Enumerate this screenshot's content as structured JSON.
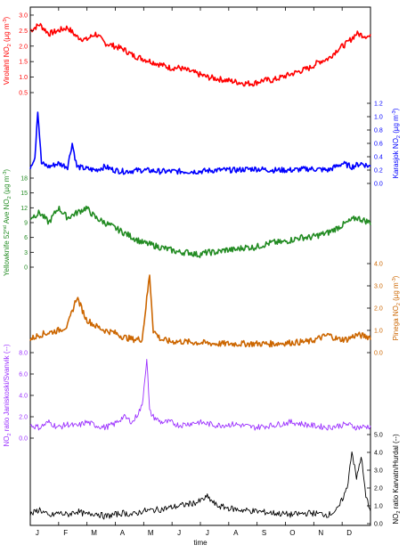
{
  "chart_data": {
    "type": "line",
    "xlabel": "time",
    "month_ticks": [
      "J",
      "F",
      "M",
      "A",
      "M",
      "J",
      "J",
      "A",
      "S",
      "O",
      "N",
      "D"
    ],
    "x_range": [
      0,
      365
    ],
    "panels": [
      {
        "id": "virolahti",
        "side": "left",
        "ylabel_main": "Virolahti NO",
        "ylabel_sub": "2",
        "ylabel_unit": " (µg m",
        "ylabel_sup": "-3",
        "ylabel_end": ")",
        "color": "#ff0000",
        "ylim": [
          0.5,
          3.2
        ],
        "ticks": [
          "0.5",
          "1.0",
          "1.5",
          "2.0",
          "2.5",
          "3.0"
        ],
        "tick_values": [
          0.5,
          1.0,
          1.5,
          2.0,
          2.5,
          3.0
        ],
        "series": {
          "name": "Virolahti",
          "x": [
            0,
            10,
            20,
            30,
            40,
            50,
            60,
            70,
            80,
            90,
            100,
            110,
            120,
            130,
            140,
            150,
            160,
            170,
            180,
            190,
            200,
            210,
            220,
            230,
            240,
            250,
            260,
            270,
            280,
            290,
            300,
            310,
            320,
            330,
            340,
            350,
            365
          ],
          "values": [
            2.5,
            2.7,
            2.4,
            2.5,
            2.6,
            2.3,
            2.2,
            2.4,
            2.1,
            2.0,
            1.9,
            1.7,
            1.6,
            1.5,
            1.4,
            1.3,
            1.3,
            1.2,
            1.1,
            1.0,
            0.95,
            0.9,
            0.85,
            0.8,
            0.8,
            0.9,
            0.9,
            1.0,
            1.1,
            1.2,
            1.3,
            1.5,
            1.6,
            1.9,
            2.1,
            2.4,
            2.3
          ]
        }
      },
      {
        "id": "karasjok",
        "side": "right",
        "ylabel_main": "Karasjok NO",
        "ylabel_sub": "2",
        "ylabel_unit": " (µg m",
        "ylabel_sup": "-3",
        "ylabel_end": ")",
        "color": "#0000ff",
        "ylim": [
          0.0,
          1.2
        ],
        "ticks": [
          "0.0",
          "0.2",
          "0.4",
          "0.6",
          "0.8",
          "1.0",
          "1.2"
        ],
        "tick_values": [
          0.0,
          0.2,
          0.4,
          0.6,
          0.8,
          1.0,
          1.2
        ],
        "series": {
          "name": "Karasjok",
          "x": [
            0,
            5,
            8,
            12,
            20,
            30,
            40,
            45,
            50,
            60,
            70,
            80,
            90,
            100,
            120,
            140,
            160,
            180,
            200,
            220,
            240,
            260,
            280,
            300,
            320,
            335,
            345,
            355,
            365
          ],
          "values": [
            0.25,
            0.4,
            1.1,
            0.3,
            0.25,
            0.3,
            0.25,
            0.6,
            0.25,
            0.22,
            0.2,
            0.25,
            0.2,
            0.18,
            0.2,
            0.18,
            0.18,
            0.18,
            0.2,
            0.2,
            0.22,
            0.2,
            0.2,
            0.22,
            0.2,
            0.3,
            0.25,
            0.3,
            0.25
          ]
        }
      },
      {
        "id": "yellowknife",
        "side": "left",
        "ylabel_main": "Yellowknife 52",
        "ylabel_sub": "",
        "ylabel_sup_nd": "nd",
        "ylabel_unit": " Ave NO",
        "ylabel_sub2": "2",
        "ylabel_unit2": " (µg m",
        "ylabel_sup": "-3",
        "ylabel_end": ")",
        "color": "#228b22",
        "ylim": [
          0,
          18
        ],
        "ticks": [
          "0",
          "3",
          "6",
          "9",
          "12",
          "15",
          "18"
        ],
        "tick_values": [
          0,
          3,
          6,
          9,
          12,
          15,
          18
        ],
        "series": {
          "name": "Yellowknife",
          "x": [
            0,
            10,
            20,
            30,
            40,
            50,
            60,
            70,
            80,
            90,
            100,
            110,
            120,
            130,
            140,
            150,
            160,
            170,
            180,
            190,
            200,
            210,
            220,
            230,
            240,
            250,
            260,
            270,
            280,
            290,
            300,
            310,
            320,
            330,
            340,
            350,
            365
          ],
          "values": [
            10,
            11,
            9,
            12,
            10,
            11,
            12,
            10,
            9,
            8,
            7,
            6,
            5,
            4.5,
            4,
            3.5,
            3,
            3,
            2.5,
            3,
            3,
            3.5,
            3.5,
            4,
            4,
            4.5,
            5,
            5,
            5.5,
            6,
            6,
            6.5,
            7,
            8,
            9,
            10,
            9
          ]
        }
      },
      {
        "id": "pinega",
        "side": "right",
        "ylabel_main": "Pinega NO",
        "ylabel_sub": "2",
        "ylabel_unit": " (µg m",
        "ylabel_sup": "-3",
        "ylabel_end": ")",
        "color": "#cc6600",
        "ylim": [
          0.0,
          4.0
        ],
        "ticks": [
          "0.0",
          "1.0",
          "2.0",
          "3.0",
          "4.0"
        ],
        "tick_values": [
          0.0,
          1.0,
          2.0,
          3.0,
          4.0
        ],
        "series": {
          "name": "Pinega",
          "x": [
            0,
            10,
            20,
            30,
            40,
            50,
            60,
            70,
            80,
            90,
            100,
            110,
            120,
            128,
            132,
            140,
            150,
            160,
            180,
            200,
            220,
            240,
            260,
            280,
            300,
            320,
            330,
            340,
            350,
            365
          ],
          "values": [
            0.6,
            0.8,
            0.9,
            1.0,
            1.2,
            2.5,
            1.5,
            1.2,
            1.0,
            0.9,
            0.7,
            0.6,
            0.6,
            3.5,
            1.0,
            0.6,
            0.5,
            0.5,
            0.45,
            0.4,
            0.4,
            0.4,
            0.4,
            0.45,
            0.5,
            0.8,
            0.6,
            0.6,
            0.8,
            0.7
          ]
        }
      },
      {
        "id": "ratio_janiskoski",
        "side": "left",
        "ylabel_main": "NO",
        "ylabel_sub": "2",
        "ylabel_unit": " ratio Janiskoski/Svanvik (--)",
        "ylabel_sup": "",
        "ylabel_end": "",
        "color": "#9b30ff",
        "ylim": [
          0.0,
          8.0
        ],
        "ticks": [
          "0.0",
          "2.0",
          "4.0",
          "6.0",
          "8.0"
        ],
        "tick_values": [
          0.0,
          2.0,
          4.0,
          6.0,
          8.0
        ],
        "series": {
          "name": "Janiskoski/Svanvik",
          "x": [
            0,
            10,
            20,
            30,
            40,
            50,
            60,
            70,
            80,
            90,
            100,
            110,
            120,
            125,
            128,
            132,
            140,
            150,
            160,
            180,
            200,
            220,
            240,
            260,
            280,
            300,
            320,
            340,
            350,
            365
          ],
          "values": [
            1.2,
            1.0,
            1.5,
            1.0,
            1.3,
            1.1,
            1.5,
            1.2,
            1.0,
            1.3,
            2.0,
            1.5,
            3.0,
            7.5,
            2.5,
            2.0,
            1.5,
            1.5,
            1.2,
            1.5,
            1.2,
            1.3,
            1.0,
            1.2,
            1.5,
            1.2,
            1.0,
            1.3,
            1.0,
            1.1
          ]
        }
      },
      {
        "id": "ratio_karvatn",
        "side": "right",
        "ylabel_main": "NO",
        "ylabel_sub": "2",
        "ylabel_unit": " ratio Karvatn/Hurdal (--)",
        "ylabel_sup": "",
        "ylabel_end": "",
        "color": "#000000",
        "ylim": [
          0.0,
          5.0
        ],
        "ticks": [
          "0.0",
          "1.0",
          "2.0",
          "3.0",
          "4.0",
          "5.0"
        ],
        "tick_values": [
          0.0,
          1.0,
          2.0,
          3.0,
          4.0,
          5.0
        ],
        "series": {
          "name": "Karvatn/Hurdal",
          "x": [
            0,
            10,
            20,
            30,
            40,
            50,
            60,
            70,
            80,
            90,
            100,
            110,
            120,
            140,
            160,
            180,
            190,
            200,
            220,
            240,
            260,
            280,
            300,
            320,
            330,
            340,
            345,
            350,
            355,
            360,
            365
          ],
          "values": [
            0.5,
            0.8,
            0.4,
            0.6,
            0.5,
            0.7,
            0.5,
            0.6,
            0.4,
            0.5,
            0.6,
            0.5,
            0.7,
            0.8,
            1.0,
            1.2,
            1.5,
            1.0,
            0.8,
            0.7,
            0.6,
            0.5,
            0.6,
            0.5,
            0.8,
            2.0,
            4.1,
            2.5,
            3.8,
            1.5,
            0.8
          ]
        }
      }
    ]
  }
}
